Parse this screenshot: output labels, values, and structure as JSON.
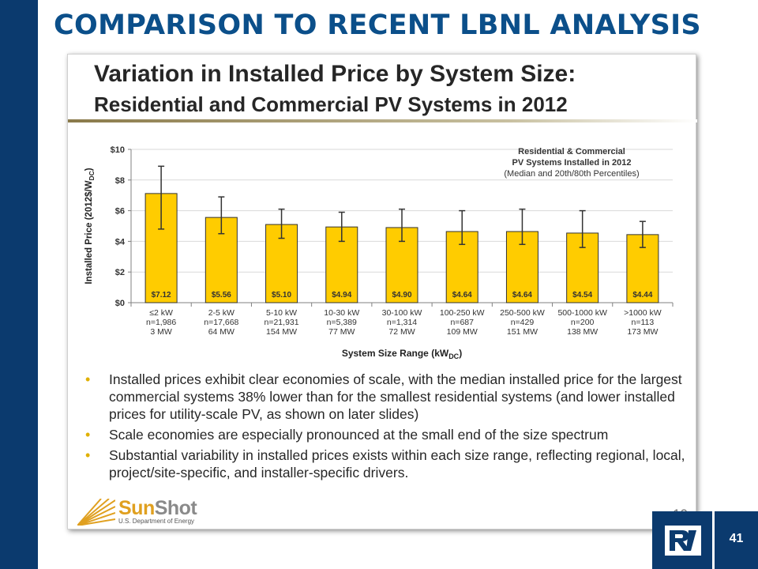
{
  "slide": {
    "title": "COMPARISON TO RECENT LBNL ANALYSIS",
    "page_number": "41"
  },
  "embedded_slide": {
    "title_line1": "Variation in Installed Price by System Size:",
    "title_line2": "Residential and Commercial PV Systems in 2012",
    "page_number": "10",
    "bullets": [
      "Installed prices exhibit clear economies of scale, with the median installed price for the largest commercial systems 38% lower than for the smallest residential systems (and lower installed prices for utility-scale PV, as shown on later slides)",
      "Scale economies are especially pronounced at the small end of the size spectrum",
      "Substantial variability in installed prices exists within each size range, reflecting regional, local, project/site-specific, and installer-specific drivers."
    ],
    "logo": {
      "brand_sun": "Sun",
      "brand_shot": "Shot",
      "department": "U.S. Department of Energy"
    }
  },
  "chart_data": {
    "type": "bar",
    "legend": {
      "line1": "Residential & Commercial",
      "line2": "PV Systems Installed in 2012",
      "line3": "(Median and 20th/80th Percentiles)"
    },
    "ylabel": "Installed Price (2012$/W",
    "ylabel_sub": "DC",
    "ylabel_end": ")",
    "xlabel": "System Size Range (kW",
    "xlabel_sub": "DC",
    "xlabel_end": ")",
    "ylim": [
      0,
      10
    ],
    "yticks": [
      0,
      2,
      4,
      6,
      8,
      10
    ],
    "ytick_labels": [
      "$0",
      "$2",
      "$4",
      "$6",
      "$8",
      "$10"
    ],
    "categories": [
      {
        "size": "≤2 kW",
        "n": "n=1,986",
        "mw": "3 MW"
      },
      {
        "size": "2-5 kW",
        "n": "n=17,668",
        "mw": "64 MW"
      },
      {
        "size": "5-10 kW",
        "n": "n=21,931",
        "mw": "154 MW"
      },
      {
        "size": "10-30 kW",
        "n": "n=5,389",
        "mw": "77 MW"
      },
      {
        "size": "30-100 kW",
        "n": "n=1,314",
        "mw": "72 MW"
      },
      {
        "size": "100-250 kW",
        "n": "n=687",
        "mw": "109 MW"
      },
      {
        "size": "250-500 kW",
        "n": "n=429",
        "mw": "151 MW"
      },
      {
        "size": "500-1000 kW",
        "n": "n=200",
        "mw": "138 MW"
      },
      {
        "size": ">1000 kW",
        "n": "n=113",
        "mw": "173 MW"
      }
    ],
    "values": [
      7.12,
      5.56,
      5.1,
      4.94,
      4.9,
      4.64,
      4.64,
      4.54,
      4.44
    ],
    "value_labels": [
      "$7.12",
      "$5.56",
      "$5.10",
      "$4.94",
      "$4.90",
      "$4.64",
      "$4.64",
      "$4.54",
      "$4.44"
    ],
    "p20": [
      4.8,
      4.5,
      4.2,
      4.0,
      4.0,
      3.8,
      3.8,
      3.6,
      3.6
    ],
    "p80": [
      8.9,
      6.9,
      6.1,
      5.9,
      6.1,
      6.0,
      6.1,
      6.0,
      5.3
    ],
    "bar_color": "#ffcc00",
    "grid": true
  }
}
